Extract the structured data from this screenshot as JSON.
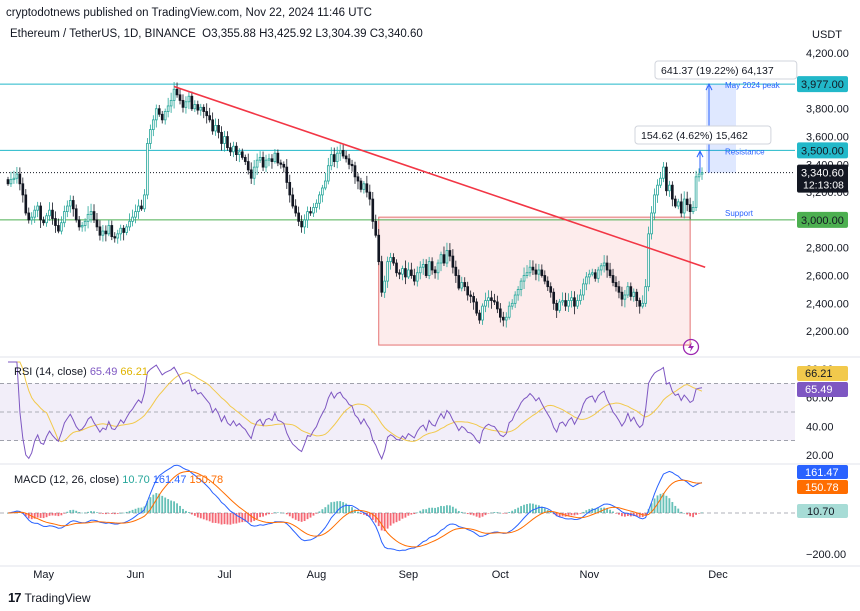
{
  "header": {
    "publisher_line": "cryptodotnews published on TradingView.com, Nov 22, 2024 11:46 UTC",
    "currency": "USDT"
  },
  "symbol": {
    "name": "Ethereum / TetherUS, 1D, BINANCE",
    "ohlc": "O3,355.88  H3,425.92  L3,304.39  C3,340.60"
  },
  "colors": {
    "up": "#26a69a",
    "down": "#131722",
    "trendline": "#f23645",
    "cyan_line": "#22b8c9",
    "green_line": "#4caf50",
    "range_box_fill": "#fdecec",
    "range_box_border": "#e57373",
    "measure": "#2962ff",
    "rsi_line": "#7e57c2",
    "rsi_ma": "#f2c94c",
    "macd_line": "#2962ff",
    "signal_line": "#ff6d00",
    "hist_up": "#26a69a",
    "hist_down": "#f23645",
    "label_dark": "#131722",
    "label_green": "#4caf50",
    "label_cyan": "#22b8c9"
  },
  "chart_data": [
    {
      "type": "candlestick",
      "y_axis": {
        "range": [
          2050,
          4280
        ],
        "ticks": [
          "4,200.00",
          "3,800.00",
          "3,600.00",
          "3,400.00",
          "3,200.00",
          "2,800.00",
          "2,600.00",
          "2,400.00",
          "2,200.00"
        ],
        "tick_values": [
          4200,
          3800,
          3600,
          3400,
          3200,
          2800,
          2600,
          2400,
          2200
        ]
      },
      "x_axis": {
        "labels": [
          "May",
          "Jun",
          "Jul",
          "Aug",
          "Sep",
          "Oct",
          "Nov",
          "Dec"
        ]
      },
      "horizontal_levels": [
        {
          "value": 3977,
          "label": "3,977.00",
          "note": "May 2024 peak",
          "color": "cyan"
        },
        {
          "value": 3500,
          "label": "3,500.00",
          "note": "Resistance",
          "color": "cyan"
        },
        {
          "value": 3000,
          "label": "3,000.00",
          "note": "Support",
          "color": "green"
        }
      ],
      "last_price": {
        "value": 3340.6,
        "label": "3,340.60",
        "countdown": "12:13:08"
      },
      "measurements": [
        {
          "text": "641.37 (19.22%) 64,137",
          "from": 3340,
          "to": 3977
        },
        {
          "text": "154.62 (4.62%) 15,462",
          "from": 3340,
          "to": 3495
        }
      ],
      "trendline": {
        "from_price": 3960,
        "to_price": 2660
      },
      "range_box": {
        "top": 3020,
        "bottom": 2100
      },
      "closes": [
        3260,
        3290,
        3300,
        3330,
        3260,
        3180,
        3050,
        3000,
        3020,
        3070,
        3100,
        3000,
        2980,
        3030,
        3070,
        3010,
        2960,
        2920,
        2980,
        3060,
        3100,
        3140,
        3080,
        3000,
        2950,
        2960,
        2990,
        3040,
        3060,
        3000,
        2950,
        2890,
        2920,
        2900,
        2960,
        2880,
        2870,
        2900,
        2940,
        2910,
        2950,
        2990,
        3020,
        3060,
        3100,
        3080,
        3180,
        3550,
        3650,
        3720,
        3800,
        3760,
        3720,
        3780,
        3820,
        3860,
        3940,
        3900,
        3860,
        3810,
        3850,
        3890,
        3800,
        3830,
        3790,
        3810,
        3780,
        3750,
        3720,
        3640,
        3680,
        3630,
        3550,
        3600,
        3520,
        3490,
        3530,
        3470,
        3490,
        3450,
        3420,
        3360,
        3300,
        3380,
        3430,
        3450,
        3380,
        3430,
        3440,
        3420,
        3480,
        3410,
        3400,
        3380,
        3270,
        3180,
        3100,
        3050,
        2990,
        2950,
        3000,
        3060,
        3050,
        3090,
        3120,
        3180,
        3230,
        3280,
        3390,
        3470,
        3420,
        3480,
        3500,
        3460,
        3440,
        3400,
        3390,
        3310,
        3280,
        3220,
        3260,
        3200,
        3150,
        2990,
        2890,
        2700,
        2480,
        2560,
        2700,
        2730,
        2690,
        2620,
        2610,
        2650,
        2590,
        2640,
        2600,
        2560,
        2620,
        2660,
        2680,
        2600,
        2700,
        2640,
        2620,
        2690,
        2750,
        2690,
        2780,
        2740,
        2660,
        2600,
        2510,
        2550,
        2520,
        2460,
        2450,
        2410,
        2330,
        2280,
        2380,
        2420,
        2440,
        2420,
        2410,
        2360,
        2300,
        2280,
        2300,
        2380,
        2400,
        2460,
        2500,
        2560,
        2600,
        2620,
        2660,
        2640,
        2610,
        2640,
        2600,
        2560,
        2520,
        2480,
        2400,
        2350,
        2410,
        2420,
        2380,
        2420,
        2440,
        2380,
        2420,
        2460,
        2540,
        2590,
        2610,
        2620,
        2580,
        2640,
        2670,
        2690,
        2640,
        2600,
        2550,
        2520,
        2480,
        2430,
        2460,
        2520,
        2450,
        2480,
        2420,
        2380,
        2400,
        2520,
        2900,
        3050,
        3180,
        3250,
        3300,
        3380,
        3210,
        3250,
        3150,
        3100,
        3130,
        3050,
        3150,
        3110,
        3060,
        3090,
        3310,
        3330,
        3340
      ]
    },
    {
      "type": "line",
      "name": "RSI (14, close)",
      "values_label": [
        "65.49",
        "66.21"
      ],
      "y_axis": {
        "range": [
          15,
          85
        ],
        "ticks": [
          "80.00",
          "60.00",
          "40.00",
          "20.00"
        ],
        "tick_values": [
          80,
          60,
          40,
          20
        ],
        "band": [
          30,
          70
        ]
      },
      "last": {
        "rsi": "65.49",
        "ma": "66.21"
      }
    },
    {
      "type": "histogram",
      "name": "MACD (12, 26, close)",
      "values_label": [
        "10.70",
        "161.47",
        "150.78"
      ],
      "y_axis": {
        "range": [
          -240,
          230
        ],
        "ticks": [
          "−200.00"
        ],
        "tick_values": [
          -200
        ]
      },
      "last": {
        "histogram": "10.70",
        "macd": "161.47",
        "signal": "150.78"
      }
    }
  ],
  "footer": {
    "brand": "TradingView",
    "logo_mark": "17"
  }
}
